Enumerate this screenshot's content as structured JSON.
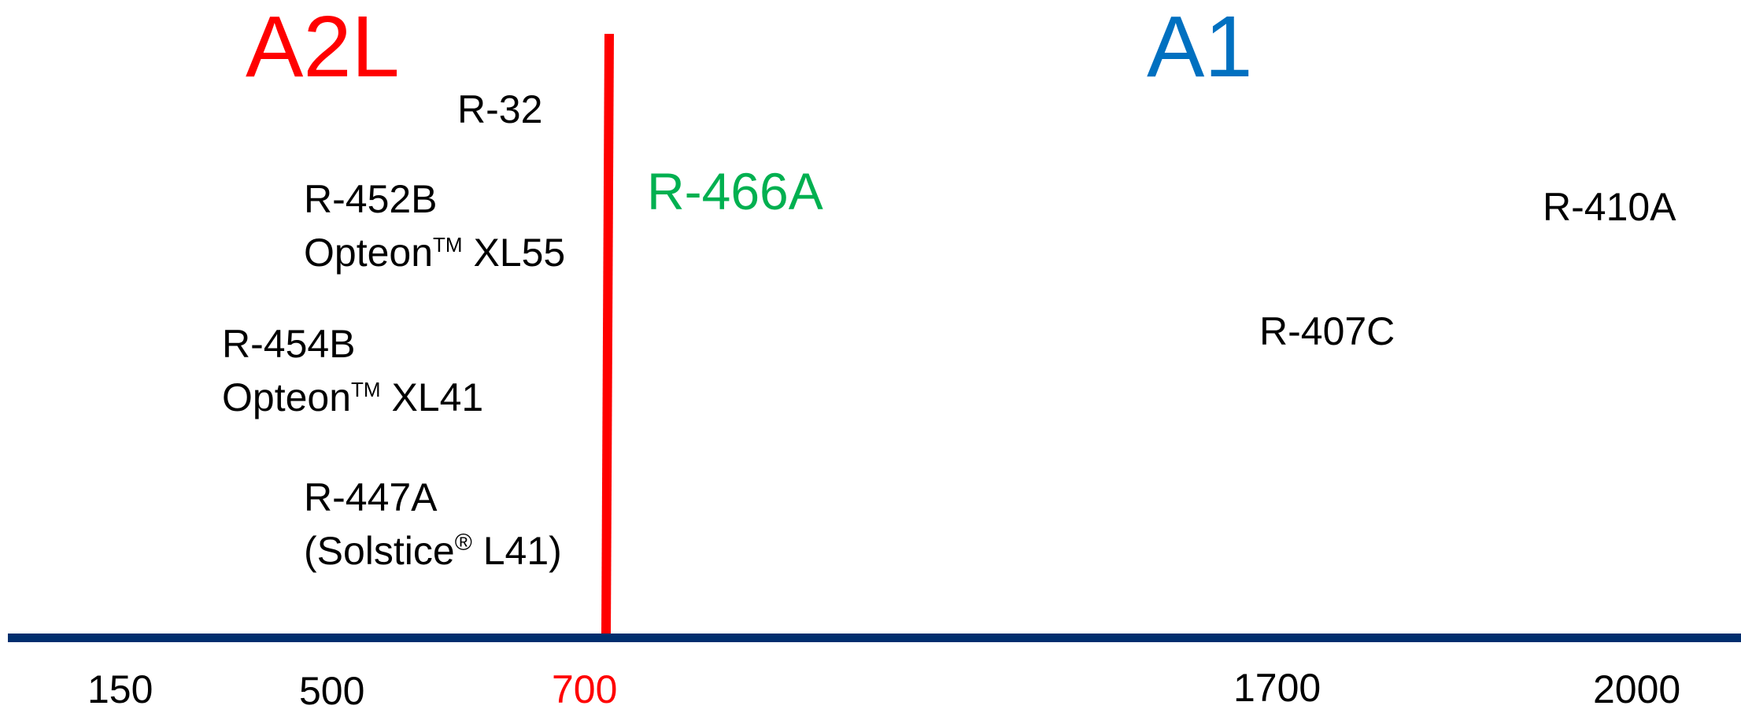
{
  "colors": {
    "a2l": "#ff0000",
    "a1": "#0070c0",
    "r466a": "#00b050",
    "axis": "#002e6e",
    "divider": "#ff0000",
    "text": "#000000",
    "tick_700": "#ff0000"
  },
  "classes": {
    "a2l": "A2L",
    "a1": "A1"
  },
  "refrigerants": {
    "r32": "R-32",
    "r452b_name": "R-452B",
    "r452b_trade": "Opteon",
    "r452b_tm": "TM",
    "r452b_model": " XL55",
    "r454b_name": "R-454B",
    "r454b_trade": "Opteon",
    "r454b_tm": "TM",
    "r454b_model": " XL41",
    "r447a_name": "R-447A",
    "r447a_trade_open": "(Solstice",
    "r447a_reg": "®",
    "r447a_model_close": " L41)",
    "r466a": "R-466A",
    "r410a": "R-410A",
    "r407c": "R-407C"
  },
  "axis": {
    "ticks": [
      "150",
      "500",
      "700",
      "1700",
      "2000"
    ]
  }
}
